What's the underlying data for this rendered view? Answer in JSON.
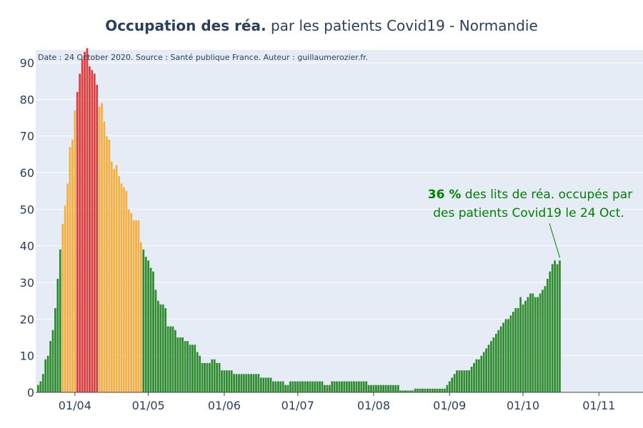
{
  "title": {
    "bold": "Occupation des réa.",
    "rest": " par les patients Covid19 - Normandie"
  },
  "source_note": "Date : 24 October 2020. Source : Santé publique France. Auteur : guillaumerozier.fr.",
  "annotation": {
    "value": "36",
    "pct": " %",
    "line1_rest": " des lits de réa. occupés par",
    "line2": "des patients Covid19 le 24 Oct."
  },
  "colors": {
    "plot_bg": "#e5ecf6",
    "grid": "#ffffff",
    "green": "#2e8b2e",
    "orange": "#f5b041",
    "red": "#e03b3b",
    "annotation": "#008000",
    "text": "#2a3f5f"
  },
  "chart_data": {
    "type": "bar",
    "ylim": [
      0,
      93.5
    ],
    "y_ticks": [
      0,
      10,
      20,
      30,
      40,
      50,
      60,
      70,
      80,
      90
    ],
    "x_range": [
      "2020-03-16",
      "2020-11-19"
    ],
    "x_ticks": [
      {
        "date": "2020-04-01",
        "label": "01/04"
      },
      {
        "date": "2020-05-01",
        "label": "01/05"
      },
      {
        "date": "2020-06-01",
        "label": "01/06"
      },
      {
        "date": "2020-07-01",
        "label": "01/07"
      },
      {
        "date": "2020-08-01",
        "label": "01/08"
      },
      {
        "date": "2020-09-01",
        "label": "01/09"
      },
      {
        "date": "2020-10-01",
        "label": "01/10"
      },
      {
        "date": "2020-11-01",
        "label": "01/11"
      }
    ],
    "color_rule": "green below 40, orange 40 to 80, red above 80",
    "first_date": "2020-03-17",
    "series": [
      {
        "values": [
          2,
          3,
          5,
          9,
          10,
          14,
          17,
          23,
          31,
          39,
          46,
          51,
          57,
          67,
          69,
          77,
          82,
          87,
          91,
          93,
          94,
          89,
          88,
          87,
          84,
          78,
          79,
          74,
          70,
          69,
          63,
          61,
          62,
          59,
          57,
          56,
          55,
          50,
          49,
          47,
          47,
          47,
          41,
          39,
          37,
          36,
          34,
          33,
          28,
          25,
          24,
          24,
          23,
          18,
          18,
          18,
          17,
          15,
          15,
          15,
          14,
          14,
          13,
          13,
          13,
          11,
          10,
          8,
          8,
          8,
          8,
          9,
          9,
          8,
          8,
          6,
          6,
          6,
          6,
          6,
          5,
          5,
          5,
          5,
          5,
          5,
          5,
          5,
          5,
          5,
          5,
          4,
          4,
          4,
          4,
          4,
          3,
          3,
          3,
          3,
          3,
          2,
          2,
          3,
          3,
          3,
          3,
          3,
          3,
          3,
          3,
          3,
          3,
          3,
          3,
          3,
          3,
          2,
          2,
          2,
          3,
          3,
          3,
          3,
          3,
          3,
          3,
          3,
          3,
          3,
          3,
          3,
          3,
          3,
          3,
          2,
          2,
          2,
          2,
          2,
          2,
          2,
          2,
          2,
          2,
          2,
          2,
          2,
          0.5,
          0.5,
          0.5,
          0.5,
          0.5,
          0.5,
          1,
          1,
          1,
          1,
          1,
          1,
          1,
          1,
          1,
          1,
          1,
          1,
          1,
          2,
          3,
          4,
          5,
          6,
          6,
          6,
          6,
          6,
          6,
          7,
          8,
          9,
          9,
          10,
          11,
          12,
          13,
          14,
          15,
          16,
          17,
          18,
          19,
          20,
          20,
          21,
          22,
          23,
          23,
          26,
          24,
          25,
          26,
          27,
          27,
          26,
          26,
          27,
          28,
          29,
          31,
          33,
          35,
          36,
          35,
          36
        ]
      }
    ]
  }
}
